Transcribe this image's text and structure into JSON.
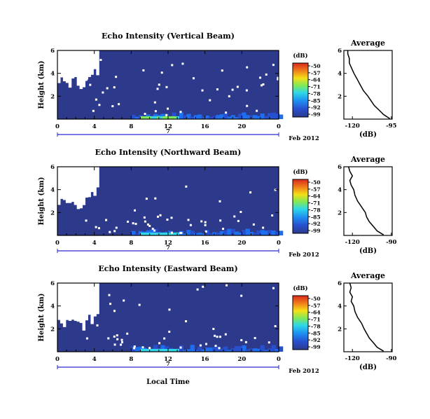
{
  "figure": {
    "xlabel": "Local Time",
    "date_label": "7",
    "month_label": "Feb 2012"
  },
  "chart_data": [
    {
      "type": "heatmap",
      "title": "Echo Intensity (Vertical Beam)",
      "xlabel": "Local Time",
      "ylabel": "Height (km)",
      "xlim": [
        0,
        24
      ],
      "ylim": [
        0,
        6
      ],
      "x_ticks": [
        "0",
        "4",
        "8",
        "12",
        "16",
        "20",
        "0"
      ],
      "y_ticks": [
        "2",
        "4",
        "6"
      ],
      "colorbar_label": "(dB)",
      "colorbar_ticks": [
        "-50",
        "-57",
        "-64",
        "-71",
        "-78",
        "-85",
        "-92",
        "-99"
      ],
      "colorbar_range": [
        -99,
        -50
      ],
      "dominant_value_db": -99,
      "no_data_region": "upper left, roughly 0-4 h above 2.2-3.8 km",
      "enhanced_echo": "near-surface layer ~8-24 h, below 0.5 km, up to about -78 dB",
      "average_profile": {
        "title": "Average",
        "xlabel": "(dB)",
        "x_ticks": [
          "-120",
          "-95"
        ],
        "y_ticks": [
          "2",
          "4",
          "6"
        ],
        "height_km": [
          0.05,
          0.4,
          0.8,
          1.2,
          1.6,
          2.0,
          2.5,
          3.0,
          3.5,
          4.0,
          4.3,
          4.6,
          4.9,
          5.3,
          5.7,
          6.0
        ],
        "db": [
          -96,
          -100,
          -103,
          -106,
          -108,
          -110,
          -113,
          -115,
          -117,
          -119,
          -120,
          -121,
          -122,
          -122,
          -123,
          -123
        ]
      }
    },
    {
      "type": "heatmap",
      "title": "Echo Intensity (Northward Beam)",
      "xlabel": "Local Time",
      "ylabel": "Height (km)",
      "xlim": [
        0,
        24
      ],
      "ylim": [
        0,
        6
      ],
      "x_ticks": [
        "0",
        "4",
        "8",
        "12",
        "16",
        "20",
        "0"
      ],
      "y_ticks": [
        "2",
        "4",
        "6"
      ],
      "colorbar_label": "(dB)",
      "colorbar_ticks": [
        "-50",
        "-57",
        "-64",
        "-71",
        "-78",
        "-85",
        "-92",
        "-99"
      ],
      "colorbar_range": [
        -99,
        -50
      ],
      "dominant_value_db": -99,
      "no_data_region": "upper left, roughly 0-4 h above 1.8-3.5 km",
      "enhanced_echo": "near-surface layer ~8-24 h, below 0.5 km, up to about -85 dB",
      "average_profile": {
        "title": "Average",
        "xlabel": "(dB)",
        "x_ticks": [
          "-120",
          "-90"
        ],
        "y_ticks": [
          "2",
          "4",
          "6"
        ],
        "height_km": [
          0.05,
          0.4,
          0.8,
          1.2,
          1.6,
          2.0,
          2.5,
          3.0,
          3.5,
          4.0,
          4.4,
          4.8,
          5.2,
          5.6,
          6.0
        ],
        "db": [
          -96,
          -101,
          -104,
          -107,
          -109,
          -110,
          -113,
          -116,
          -118,
          -119,
          -121,
          -122,
          -120,
          -122,
          -123
        ]
      }
    },
    {
      "type": "heatmap",
      "title": "Echo Intensity (Eastward Beam)",
      "xlabel": "Local Time",
      "ylabel": "Height (km)",
      "xlim": [
        0,
        24
      ],
      "ylim": [
        0,
        6
      ],
      "x_ticks": [
        "0",
        "4",
        "8",
        "12",
        "16",
        "20",
        "0"
      ],
      "y_ticks": [
        "2",
        "4",
        "6"
      ],
      "colorbar_label": "(dB)",
      "colorbar_ticks": [
        "-50",
        "-57",
        "-64",
        "-71",
        "-78",
        "-85",
        "-92",
        "-99"
      ],
      "colorbar_range": [
        -99,
        -50
      ],
      "dominant_value_db": -99,
      "no_data_region": "upper left, roughly 0-4 h above 1.5-3.5 km",
      "enhanced_echo": "near-surface layer ~8-24 h, below 0.5 km, up to about -85 dB",
      "average_profile": {
        "title": "Average",
        "xlabel": "(dB)",
        "x_ticks": [
          "-120",
          "-90"
        ],
        "y_ticks": [
          "2",
          "4",
          "6"
        ],
        "height_km": [
          0.05,
          0.4,
          0.8,
          1.2,
          1.6,
          2.0,
          2.5,
          3.0,
          3.5,
          4.0,
          4.4,
          4.8,
          5.2,
          5.6,
          6.0
        ],
        "db": [
          -96,
          -101,
          -104,
          -107,
          -109,
          -111,
          -113,
          -116,
          -118,
          -119,
          -121,
          -120,
          -122,
          -121,
          -122
        ]
      }
    }
  ],
  "colors": {
    "background_field": "#2d3a8c",
    "axis": "#000000",
    "date_bar": "#2a2ad0",
    "colorbar": [
      "#d8281e",
      "#f07d1a",
      "#f4e016",
      "#7ce85a",
      "#2ed8e8",
      "#1d8ff0",
      "#2750d0",
      "#2d3a8c"
    ]
  }
}
